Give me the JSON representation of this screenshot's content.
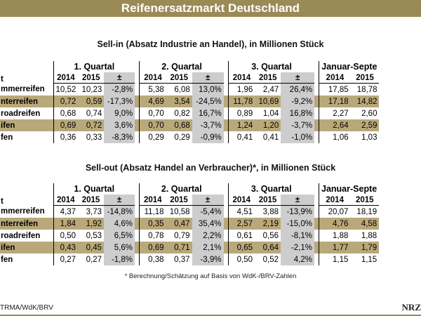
{
  "title": "Reifenersatzmarkt Deutschland",
  "sections": [
    {
      "title": "Sell-in (Absatz Industrie an Handel), in Millionen Stück",
      "corner": "t",
      "quarters": [
        "1. Quartal",
        "2. Quartal",
        "3. Quartal",
        "Januar-Septe"
      ],
      "year_a": "2014",
      "year_b": "2015",
      "pm": "±",
      "rows": [
        {
          "label": "mmerreifen",
          "band": false,
          "cells": [
            "10,52",
            "10,23",
            "-2,8%",
            "5,38",
            "6,08",
            "13,0%",
            "1,96",
            "2,47",
            "26,4%",
            "17,85",
            "18,78"
          ]
        },
        {
          "label": "nterreifen",
          "band": true,
          "cells": [
            "0,72",
            "0,59",
            "-17,3%",
            "4,69",
            "3,54",
            "-24,5%",
            "11,78",
            "10,69",
            "-9,2%",
            "17,18",
            "14,82"
          ]
        },
        {
          "label": "roadreifen",
          "band": false,
          "cells": [
            "0,68",
            "0,74",
            "9,0%",
            "0,70",
            "0,82",
            "16,7%",
            "0,89",
            "1,04",
            "16,8%",
            "2,27",
            "2,60"
          ]
        },
        {
          "label": "ifen",
          "band": true,
          "cells": [
            "0,69",
            "0,72",
            "3,6%",
            "0,70",
            "0,68",
            "-3,7%",
            "1,24",
            "1,20",
            "-3,7%",
            "2,64",
            "2,59"
          ]
        },
        {
          "label": "fen",
          "band": false,
          "cells": [
            "0,36",
            "0,33",
            "-8,3%",
            "0,29",
            "0,29",
            "-0,9%",
            "0,41",
            "0,41",
            "-1,0%",
            "1,06",
            "1,03"
          ]
        }
      ]
    },
    {
      "title": "Sell-out (Absatz Handel an Verbraucher)*, in Millionen Stück",
      "corner": "t",
      "quarters": [
        "1. Quartal",
        "2. Quartal",
        "3. Quartal",
        "Januar-Septe"
      ],
      "year_a": "2014",
      "year_b": "2015",
      "pm": "±",
      "rows": [
        {
          "label": "mmerreifen",
          "band": false,
          "cells": [
            "4,37",
            "3,73",
            "-14,8%",
            "11,18",
            "10,58",
            "-5,4%",
            "4,51",
            "3,88",
            "-13,9%",
            "20,07",
            "18,19"
          ]
        },
        {
          "label": "nterreifen",
          "band": true,
          "cells": [
            "1,84",
            "1,92",
            "4,6%",
            "0,35",
            "0,47",
            "35,4%",
            "2,57",
            "2,19",
            "-15,0%",
            "4,76",
            "4,58"
          ]
        },
        {
          "label": "roadreifen",
          "band": false,
          "cells": [
            "0,50",
            "0,53",
            "6,5%",
            "0,78",
            "0,79",
            "2,2%",
            "0,61",
            "0,56",
            "-8,1%",
            "1,88",
            "1,88"
          ]
        },
        {
          "label": "ifen",
          "band": true,
          "cells": [
            "0,43",
            "0,45",
            "5,6%",
            "0,69",
            "0,71",
            "2,1%",
            "0,65",
            "0,64",
            "-2,1%",
            "1,77",
            "1,79"
          ]
        },
        {
          "label": "fen",
          "band": false,
          "cells": [
            "0,27",
            "0,27",
            "-1,8%",
            "0,38",
            "0,37",
            "-3,9%",
            "0,50",
            "0,52",
            "4,2%",
            "1,15",
            "1,15"
          ]
        }
      ]
    }
  ],
  "footnote": "* Berechnung/Schätzung auf Basis von WdK-/BRV-Zahlen",
  "source": "TRMA/WdK/BRV",
  "logo": "NRZ"
}
